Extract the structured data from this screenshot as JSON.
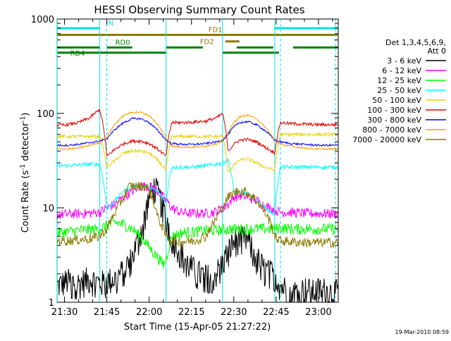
{
  "chart_data": {
    "type": "line",
    "title": "HESSI Observing Summary Count Rates",
    "xlabel": "Start Time (15-Apr-05 21:27:22)",
    "ylabel": "Count Rate (s",
    "ylabel_exp": "-1",
    "ylabel_suffix": " detector",
    "ylabel_close": ")",
    "y_scale": "log",
    "ylim": [
      1,
      1000
    ],
    "xlim": [
      "21:27:22",
      "23:07:00"
    ],
    "x_unit": "minutes after 21:00",
    "x_domain": [
      27.37,
      127
    ],
    "x_ticks": [
      {
        "label": "21:30",
        "value": 30
      },
      {
        "label": "21:45",
        "value": 45
      },
      {
        "label": "22:00",
        "value": 60
      },
      {
        "label": "22:15",
        "value": 75
      },
      {
        "label": "22:30",
        "value": 90
      },
      {
        "label": "22:45",
        "value": 105
      },
      {
        "label": "23:00",
        "value": 120
      }
    ],
    "y_ticks": [
      {
        "label": "1",
        "value": 1
      },
      {
        "label": "10",
        "value": 10
      },
      {
        "label": "100",
        "value": 100
      },
      {
        "label": "1000",
        "value": 1000
      }
    ],
    "legend": {
      "placement": "right",
      "header": [
        "Det 1,3,4,5,6,9,",
        "Att 0"
      ],
      "entries": [
        {
          "name": "3 - 6 keV",
          "color": "#000000"
        },
        {
          "name": "6 - 12 keV",
          "color": "#ff00ff"
        },
        {
          "name": "12 - 25 keV",
          "color": "#00ff00"
        },
        {
          "name": "25 - 50 keV",
          "color": "#00ffff"
        },
        {
          "name": "50 - 100 keV",
          "color": "#e6d200"
        },
        {
          "name": "100 - 300 keV",
          "color": "#e60000"
        },
        {
          "name": "300 - 800 keV",
          "color": "#0000ff"
        },
        {
          "name": "800 - 7000 keV",
          "color": "#ff9a00"
        },
        {
          "name": "7000 - 20000 keV",
          "color": "#8b7a00"
        }
      ]
    },
    "flag_bars": [
      {
        "label": "N",
        "color": "#00e6e6",
        "level": 800,
        "segments": [
          [
            27.4,
            42.5
          ],
          [
            104.5,
            127
          ]
        ]
      },
      {
        "label": "FD1",
        "color": "#8b7a00",
        "level": 680,
        "segments": [
          [
            27.4,
            127
          ]
        ]
      },
      {
        "label": "FD2",
        "color": "#8b7a00",
        "level": 580,
        "segments": [
          [
            87,
            92
          ]
        ]
      },
      {
        "label": "RD0",
        "color": "#008000",
        "level": 500,
        "segments": [
          [
            27.4,
            42.5
          ],
          [
            45,
            54
          ],
          [
            66,
            79
          ],
          [
            91,
            104
          ],
          [
            111,
            127
          ]
        ]
      },
      {
        "label": "RD4",
        "color": "#008000",
        "level": 440,
        "segments": [
          [
            27.4,
            66
          ],
          [
            86,
            106
          ]
        ]
      }
    ],
    "vlines": [
      {
        "x": 27.4,
        "style": "solid"
      },
      {
        "x": 42.5,
        "style": "solid"
      },
      {
        "x": 45,
        "style": "dashed"
      },
      {
        "x": 66,
        "style": "solid"
      },
      {
        "x": 86,
        "style": "solid"
      },
      {
        "x": 104.5,
        "style": "solid"
      },
      {
        "x": 106.5,
        "style": "dashed"
      },
      {
        "x": 126,
        "style": "dashed"
      }
    ],
    "series": [
      {
        "name": "3 - 6 keV",
        "color": "#000000",
        "x": [
          27.4,
          31,
          35,
          39,
          42.5,
          45,
          48,
          51,
          54,
          56,
          58,
          60,
          62,
          64,
          66,
          68,
          71,
          74,
          77,
          80,
          83,
          86,
          89,
          92,
          95,
          98,
          101,
          104.5,
          106.5,
          109,
          112,
          115,
          118,
          121,
          124,
          127
        ],
        "y": [
          1.5,
          1.7,
          1.6,
          1.8,
          1.6,
          1.7,
          1.8,
          2.2,
          3,
          4.5,
          7,
          13,
          17,
          12,
          8,
          5,
          3.5,
          2.5,
          2.1,
          1.9,
          1.9,
          2.6,
          4,
          5,
          4.5,
          3,
          2.2,
          2,
          1.5,
          1.4,
          1.3,
          1.4,
          1.3,
          1.4,
          1.3,
          1.3
        ]
      },
      {
        "name": "6 - 12 keV",
        "color": "#ff00ff",
        "x": [
          27.4,
          31,
          35,
          39,
          42.5,
          45,
          48,
          51,
          54,
          57,
          60,
          62,
          64,
          66,
          68,
          71,
          74,
          77,
          80,
          83,
          86,
          88,
          90,
          92,
          95,
          98,
          101,
          104.5,
          106.5,
          110,
          115,
          120,
          127
        ],
        "y": [
          8.5,
          8.6,
          8.7,
          8.8,
          9,
          10,
          11,
          13,
          15,
          17,
          17,
          16,
          14,
          12,
          10,
          9,
          8.8,
          8.8,
          8.8,
          9,
          10,
          11,
          13,
          13.5,
          13,
          12,
          10.5,
          9.5,
          9,
          9,
          8.8,
          8.7,
          8.7
        ]
      },
      {
        "name": "12 - 25 keV",
        "color": "#00ff00",
        "x": [
          27.4,
          31,
          35,
          39,
          42.5,
          45,
          48,
          51,
          54,
          57,
          59,
          61,
          63,
          65,
          66,
          68,
          72,
          76,
          80,
          84,
          86,
          89,
          92,
          95,
          98,
          101,
          104.5,
          106.5,
          110,
          115,
          120,
          127
        ],
        "y": [
          5.5,
          5.6,
          5.8,
          5.9,
          6,
          6.5,
          7,
          6.7,
          6,
          5,
          4.2,
          3.5,
          3,
          2.5,
          2.8,
          5,
          5.5,
          5.6,
          5.8,
          5.8,
          5.9,
          6,
          6,
          6,
          6,
          6,
          6,
          6.2,
          6,
          6,
          6,
          6
        ]
      },
      {
        "name": "25 - 50 keV",
        "color": "#00ffff",
        "x": [
          27.4,
          31,
          35,
          39,
          42.5,
          45,
          48,
          51,
          54,
          57,
          60,
          63,
          66,
          68,
          72,
          76,
          80,
          84,
          86,
          88,
          90,
          92,
          95,
          98,
          101,
          104.5,
          106.5,
          110,
          115,
          120,
          127
        ],
        "y": [
          28,
          28,
          28.5,
          29,
          29,
          9.5,
          12,
          15,
          17,
          17,
          16.5,
          15,
          11,
          27,
          27,
          27,
          28,
          29,
          30,
          32,
          15,
          14.5,
          14,
          12,
          10,
          8.5,
          27,
          27,
          27,
          27,
          27
        ]
      },
      {
        "name": "50 - 100 keV",
        "color": "#e6d200",
        "x": [
          27.4,
          31,
          35,
          39,
          42.5,
          45,
          48,
          51,
          54,
          57,
          60,
          63,
          66,
          68,
          72,
          76,
          80,
          84,
          86,
          88,
          90,
          92,
          95,
          98,
          101,
          104.5,
          106.5,
          110,
          115,
          120,
          127
        ],
        "y": [
          57,
          57,
          57,
          57,
          57,
          27,
          32,
          38,
          40,
          40,
          38,
          32,
          25,
          57,
          57,
          57,
          57,
          57,
          58,
          24,
          28,
          32,
          33,
          30,
          27,
          25,
          60,
          60,
          60,
          60,
          60
        ]
      },
      {
        "name": "100 - 300 keV",
        "color": "#e60000",
        "x": [
          27.4,
          31,
          35,
          39,
          42.5,
          45,
          48,
          51,
          54,
          57,
          60,
          63,
          66,
          68,
          72,
          76,
          80,
          84,
          86,
          88,
          90,
          92,
          95,
          98,
          101,
          104.5,
          106.5,
          110,
          115,
          120,
          127
        ],
        "y": [
          75,
          76,
          80,
          90,
          110,
          35,
          42,
          48,
          51,
          51,
          48,
          42,
          35,
          80,
          80,
          81,
          83,
          90,
          100,
          40,
          47,
          52,
          53,
          50,
          44,
          38,
          80,
          78,
          77,
          76,
          76
        ]
      },
      {
        "name": "300 - 800 keV",
        "color": "#0000ff",
        "x": [
          27.4,
          31,
          35,
          39,
          42.5,
          45,
          48,
          51,
          54,
          57,
          60,
          63,
          66,
          68,
          72,
          76,
          80,
          84,
          86,
          88,
          90,
          92,
          95,
          98,
          101,
          104.5,
          106.5,
          110,
          115,
          120,
          127
        ],
        "y": [
          46,
          46,
          47,
          49,
          51,
          54,
          68,
          80,
          88,
          88,
          80,
          66,
          52,
          48,
          47,
          47,
          48,
          50,
          52,
          60,
          72,
          80,
          82,
          76,
          66,
          52,
          50,
          48,
          47,
          46,
          46
        ]
      },
      {
        "name": "800 - 7000 keV",
        "color": "#ff9a00",
        "x": [
          27.4,
          31,
          35,
          39,
          42.5,
          45,
          48,
          51,
          54,
          57,
          60,
          63,
          66,
          68,
          72,
          76,
          80,
          84,
          86,
          88,
          90,
          92,
          95,
          98,
          101,
          104.5,
          106.5,
          110,
          115,
          120,
          127
        ],
        "y": [
          42,
          42,
          43,
          46,
          49,
          56,
          78,
          95,
          103,
          103,
          95,
          76,
          55,
          45,
          44,
          44,
          45,
          48,
          52,
          63,
          80,
          92,
          96,
          88,
          72,
          52,
          47,
          45,
          43,
          42,
          42
        ]
      },
      {
        "name": "7000 - 20000 keV",
        "color": "#8b7a00",
        "x": [
          27.4,
          31,
          35,
          39,
          42.5,
          45,
          48,
          51,
          53,
          56,
          59,
          61,
          63,
          66,
          68,
          72,
          76,
          80,
          83,
          86,
          88,
          91,
          94,
          97,
          100,
          103,
          104.5,
          106.5,
          110,
          115,
          120,
          127
        ],
        "y": [
          4.5,
          4.5,
          4.6,
          4.7,
          5,
          6,
          9,
          13,
          17,
          17,
          17,
          13,
          8,
          5,
          4.5,
          4.4,
          4.5,
          5,
          7,
          10,
          13,
          15,
          15,
          13,
          10,
          7,
          5,
          4.5,
          4.4,
          4.3,
          4.3,
          4.3
        ]
      }
    ],
    "footer_date": "19-Mar-2010 08:59"
  }
}
